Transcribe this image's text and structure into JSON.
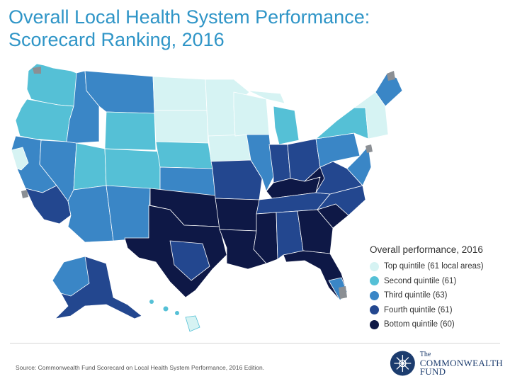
{
  "title": {
    "line1": "Overall Local Health System Performance:",
    "line2": "Scorecard Ranking, 2016"
  },
  "legend": {
    "title": "Overall performance, 2016",
    "items": [
      {
        "label": "Top quintile (61 local areas)",
        "color": "#d6f3f3"
      },
      {
        "label": "Second quintile (61)",
        "color": "#55c0d6"
      },
      {
        "label": "Third quintile (63)",
        "color": "#3a86c6"
      },
      {
        "label": "Fourth quintile (61)",
        "color": "#23478f"
      },
      {
        "label": "Bottom quintile (60)",
        "color": "#0e1846"
      }
    ]
  },
  "source": "Source: Commonwealth Fund Scorecard on Local Health System Performance, 2016 Edition.",
  "logo": {
    "the": "The",
    "line1": "COMMONWEALTH",
    "line2": "FUND"
  },
  "colors": {
    "border": "#9aa3ad",
    "nodata": "#8b8f94"
  }
}
